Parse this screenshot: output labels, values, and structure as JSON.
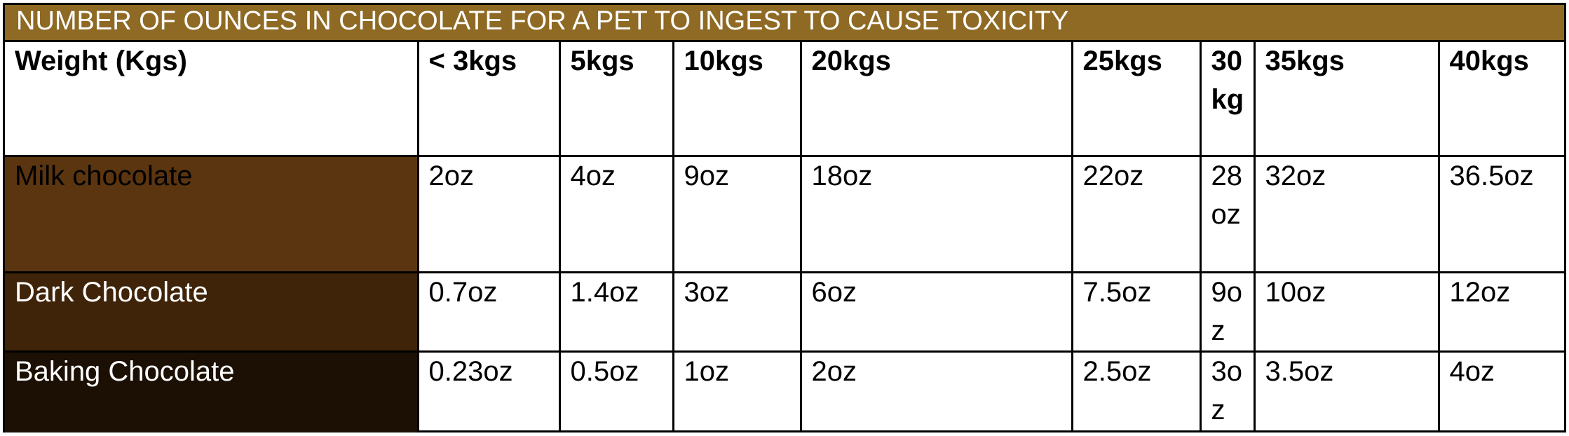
{
  "title": "NUMBER OF OUNCES IN CHOCOLATE FOR A PET TO INGEST TO CAUSE TOXICITY",
  "header": {
    "label": "Weight (Kgs)",
    "columns": [
      "< 3kgs",
      "5kgs",
      "10kgs",
      "20kgs",
      "25kgs",
      "30kg",
      "35kgs",
      "40kgs"
    ]
  },
  "rows": [
    {
      "label": "Milk chocolate",
      "values": [
        "2oz",
        "4oz",
        "9oz",
        "18oz",
        "22oz",
        "28oz",
        "32oz",
        "36.5oz"
      ]
    },
    {
      "label": "Dark Chocolate",
      "values": [
        "0.7oz",
        "1.4oz",
        "3oz",
        "6oz",
        "7.5oz",
        "9oz",
        "10oz",
        "12oz"
      ]
    },
    {
      "label": "Baking Chocolate",
      "values": [
        "0.23oz",
        "0.5oz",
        "1oz",
        "2oz",
        "2.5oz",
        "3oz",
        "3.5oz",
        "4oz"
      ]
    }
  ],
  "colors": {
    "title_bar": "#8f6a24",
    "milk_chocolate": "#5a3510",
    "dark_chocolate": "#3f240a",
    "baking_chocolate": "#1c1005"
  }
}
